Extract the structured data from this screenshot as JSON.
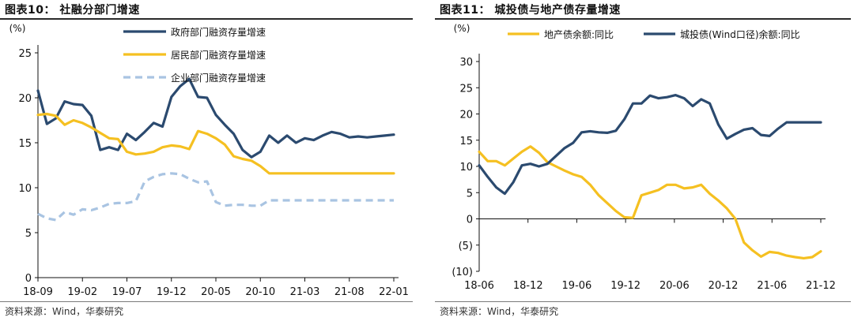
{
  "charts": [
    {
      "title": "图表10： 社融分部门增速",
      "source": "资料来源：Wind，华泰研究",
      "chart_data": {
        "type": "line",
        "unit_label": "(%)",
        "ylim": [
          0,
          25
        ],
        "yticks": [
          0,
          5,
          10,
          15,
          20,
          25
        ],
        "x_tick_labels": [
          "18-09",
          "19-02",
          "19-07",
          "19-12",
          "20-05",
          "20-10",
          "21-03",
          "21-08",
          "22-01"
        ],
        "x_months": [
          "2018-09",
          "2018-10",
          "2018-11",
          "2018-12",
          "2019-01",
          "2019-02",
          "2019-03",
          "2019-04",
          "2019-05",
          "2019-06",
          "2019-07",
          "2019-08",
          "2019-09",
          "2019-10",
          "2019-11",
          "2019-12",
          "2020-01",
          "2020-02",
          "2020-03",
          "2020-04",
          "2020-05",
          "2020-06",
          "2020-07",
          "2020-08",
          "2020-09",
          "2020-10",
          "2020-11",
          "2020-12",
          "2021-01",
          "2021-02",
          "2021-03",
          "2021-04",
          "2021-05",
          "2021-06",
          "2021-07",
          "2021-08",
          "2021-09",
          "2021-10",
          "2021-11",
          "2021-12",
          "2022-01"
        ],
        "legend_position": "top-center",
        "grid": false,
        "series": [
          {
            "name": "政府部门融资存量增速",
            "color": "#2b4a6f",
            "dash": "solid",
            "values": [
              20.8,
              17.1,
              17.7,
              19.6,
              19.3,
              19.2,
              18.0,
              14.2,
              14.5,
              14.2,
              16.0,
              15.3,
              16.2,
              17.2,
              16.8,
              20.1,
              21.3,
              22.1,
              20.1,
              20.0,
              18.1,
              17.0,
              16.0,
              14.2,
              13.4,
              14.0,
              15.8,
              15.0,
              15.8,
              15.0,
              15.5,
              15.3,
              15.8,
              16.2,
              16.0,
              15.6,
              15.7,
              15.6,
              15.7,
              15.8,
              15.9
            ]
          },
          {
            "name": "居民部门融资存量增速",
            "color": "#f5c021",
            "dash": "solid",
            "values": [
              18.1,
              18.2,
              18.0,
              17.0,
              17.5,
              17.2,
              16.7,
              16.1,
              15.5,
              15.4,
              14.0,
              13.7,
              13.8,
              14.0,
              14.5,
              14.7,
              14.6,
              14.3,
              16.3,
              16.0,
              15.5,
              14.8,
              13.5,
              13.2,
              13.0,
              12.4,
              11.6,
              11.6,
              11.6,
              11.6,
              11.6,
              11.6,
              11.6,
              11.6,
              11.6,
              11.6,
              11.6,
              11.6,
              11.6,
              11.6,
              11.6
            ]
          },
          {
            "name": "企业部门融资存量增速",
            "color": "#a9c4e2",
            "dash": "dashed",
            "values": [
              7.1,
              6.6,
              6.4,
              7.3,
              7.0,
              7.6,
              7.5,
              7.8,
              8.2,
              8.3,
              8.3,
              8.5,
              10.7,
              11.2,
              11.5,
              11.6,
              11.5,
              11.0,
              10.6,
              10.7,
              8.4,
              8.0,
              8.1,
              8.1,
              8.0,
              8.0,
              8.6,
              8.6,
              8.6,
              8.6,
              8.6,
              8.6,
              8.6,
              8.6,
              8.6,
              8.6,
              8.6,
              8.6,
              8.6,
              8.6,
              8.6
            ]
          }
        ]
      }
    },
    {
      "title": "图表11： 城投债与地产债存量增速",
      "source": "资料来源：Wind，华泰研究",
      "chart_data": {
        "type": "line",
        "unit_label": "(%)",
        "ylim": [
          -10,
          30
        ],
        "yticks": [
          -10,
          -5,
          0,
          5,
          10,
          15,
          20,
          25,
          30
        ],
        "ytick_labels": [
          "(10)",
          "(5)",
          "0",
          "5",
          "10",
          "15",
          "20",
          "25",
          "30"
        ],
        "x_tick_labels": [
          "18-06",
          "18-12",
          "19-06",
          "19-12",
          "20-06",
          "20-12",
          "21-06",
          "21-12"
        ],
        "legend_position": "top-center",
        "grid": false,
        "series": [
          {
            "name": "地产债余额:同比",
            "color": "#f5c021",
            "dash": "solid",
            "values": [
              12.8,
              11.0,
              11.0,
              10.2,
              11.5,
              12.8,
              13.8,
              12.6,
              10.8,
              10.0,
              9.2,
              8.5,
              8.0,
              6.5,
              4.5,
              3.0,
              1.5,
              0.3,
              0.2,
              4.5,
              5.0,
              5.5,
              6.5,
              6.5,
              5.8,
              6.0,
              6.5,
              4.8,
              3.5,
              2.0,
              0.0,
              -4.5,
              -6.0,
              -7.2,
              -6.3,
              -6.5,
              -7.0,
              -7.3,
              -7.5,
              -7.3,
              -6.2
            ]
          },
          {
            "name": "城投债(Wind口径)余额:同比",
            "color": "#2b4a6f",
            "dash": "solid",
            "values": [
              10.2,
              8.0,
              6.0,
              4.8,
              7.0,
              10.2,
              10.5,
              10.0,
              10.5,
              12.0,
              13.5,
              14.5,
              16.5,
              16.7,
              16.5,
              16.4,
              16.8,
              19.0,
              22.0,
              22.0,
              23.5,
              23.0,
              23.2,
              23.6,
              23.0,
              21.5,
              22.8,
              22.0,
              18.0,
              15.3,
              16.2,
              17.0,
              17.3,
              16.0,
              15.8,
              17.2,
              18.4,
              18.4,
              18.4,
              18.4,
              18.4
            ]
          }
        ]
      }
    }
  ]
}
